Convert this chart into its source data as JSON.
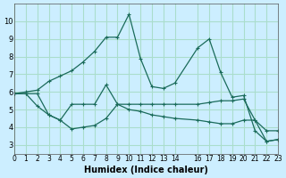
{
  "xlabel": "Humidex (Indice chaleur)",
  "background_color": "#cceeff",
  "grid_color": "#aaddcc",
  "line_color": "#1a6b5a",
  "x_ticks": [
    0,
    1,
    2,
    3,
    4,
    5,
    6,
    7,
    8,
    9,
    10,
    11,
    12,
    13,
    14,
    16,
    17,
    18,
    19,
    20,
    21,
    22,
    23
  ],
  "xlim": [
    0,
    23
  ],
  "ylim": [
    2.5,
    11
  ],
  "y_ticks": [
    3,
    4,
    5,
    6,
    7,
    8,
    9,
    10
  ],
  "line1_x": [
    0,
    1,
    2,
    3,
    4,
    5,
    6,
    7,
    8,
    9,
    10,
    11,
    12,
    13,
    14,
    16,
    17,
    18,
    19,
    20,
    21,
    22,
    23
  ],
  "line1_y": [
    5.9,
    6.0,
    6.1,
    6.6,
    6.9,
    7.2,
    7.7,
    8.3,
    9.1,
    9.1,
    10.4,
    7.9,
    6.3,
    6.2,
    6.5,
    8.5,
    9.0,
    7.1,
    5.7,
    5.8,
    3.8,
    3.2,
    3.3
  ],
  "line2_x": [
    0,
    1,
    2,
    3,
    4,
    5,
    6,
    7,
    8,
    9,
    10,
    11,
    12,
    13,
    14,
    16,
    17,
    18,
    19,
    20,
    21,
    22,
    23
  ],
  "line2_y": [
    5.9,
    5.9,
    5.9,
    4.7,
    4.4,
    5.3,
    5.3,
    5.3,
    6.4,
    5.3,
    5.3,
    5.3,
    5.3,
    5.3,
    5.3,
    5.3,
    5.4,
    5.5,
    5.5,
    5.6,
    4.4,
    3.8,
    3.8
  ],
  "line3_x": [
    0,
    1,
    2,
    3,
    4,
    5,
    6,
    7,
    8,
    9,
    10,
    11,
    12,
    13,
    14,
    16,
    17,
    18,
    19,
    20,
    21,
    22,
    23
  ],
  "line3_y": [
    5.9,
    5.9,
    5.2,
    4.7,
    4.4,
    3.9,
    4.0,
    4.1,
    4.5,
    5.3,
    5.0,
    4.9,
    4.7,
    4.6,
    4.5,
    4.4,
    4.3,
    4.2,
    4.2,
    4.4,
    4.4,
    3.2,
    3.3
  ]
}
